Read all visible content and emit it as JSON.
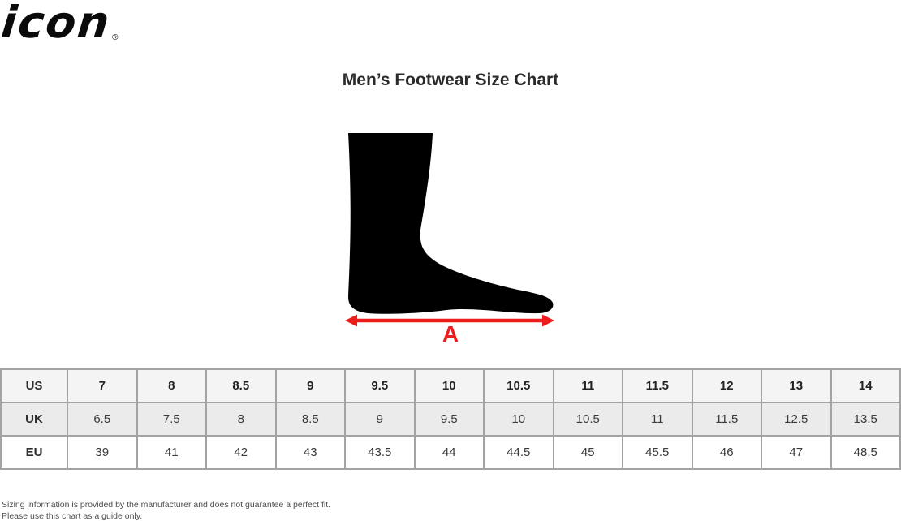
{
  "brand": {
    "logo_text": "icon",
    "registered_mark": "®"
  },
  "title": "Men’s Footwear Size Chart",
  "diagram": {
    "measure_label": "A",
    "arrow_color": "#ee1c1c",
    "foot_color": "#000000"
  },
  "chart_data": {
    "type": "table",
    "title": "Men’s Footwear Size Chart",
    "rows": [
      {
        "label": "US",
        "values": [
          "7",
          "8",
          "8.5",
          "9",
          "9.5",
          "10",
          "10.5",
          "11",
          "11.5",
          "12",
          "13",
          "14"
        ]
      },
      {
        "label": "UK",
        "values": [
          "6.5",
          "7.5",
          "8",
          "8.5",
          "9",
          "9.5",
          "10",
          "10.5",
          "11",
          "11.5",
          "12.5",
          "13.5"
        ]
      },
      {
        "label": "EU",
        "values": [
          "39",
          "41",
          "42",
          "43",
          "43.5",
          "44",
          "44.5",
          "45",
          "45.5",
          "46",
          "47",
          "48.5"
        ]
      }
    ]
  },
  "footer": {
    "line1": "Sizing information is provided by the manufacturer and does not guarantee a perfect fit.",
    "line2": "Please use this chart as a guide only."
  },
  "colors": {
    "accent_red": "#ee1c1c",
    "row_us_bg": "#f4f4f4",
    "row_uk_bg": "#ebebeb",
    "row_eu_bg": "#ffffff",
    "table_border": "#a3a3a3",
    "title_text": "#2b2b2b",
    "footer_text": "#4d4d4d"
  }
}
